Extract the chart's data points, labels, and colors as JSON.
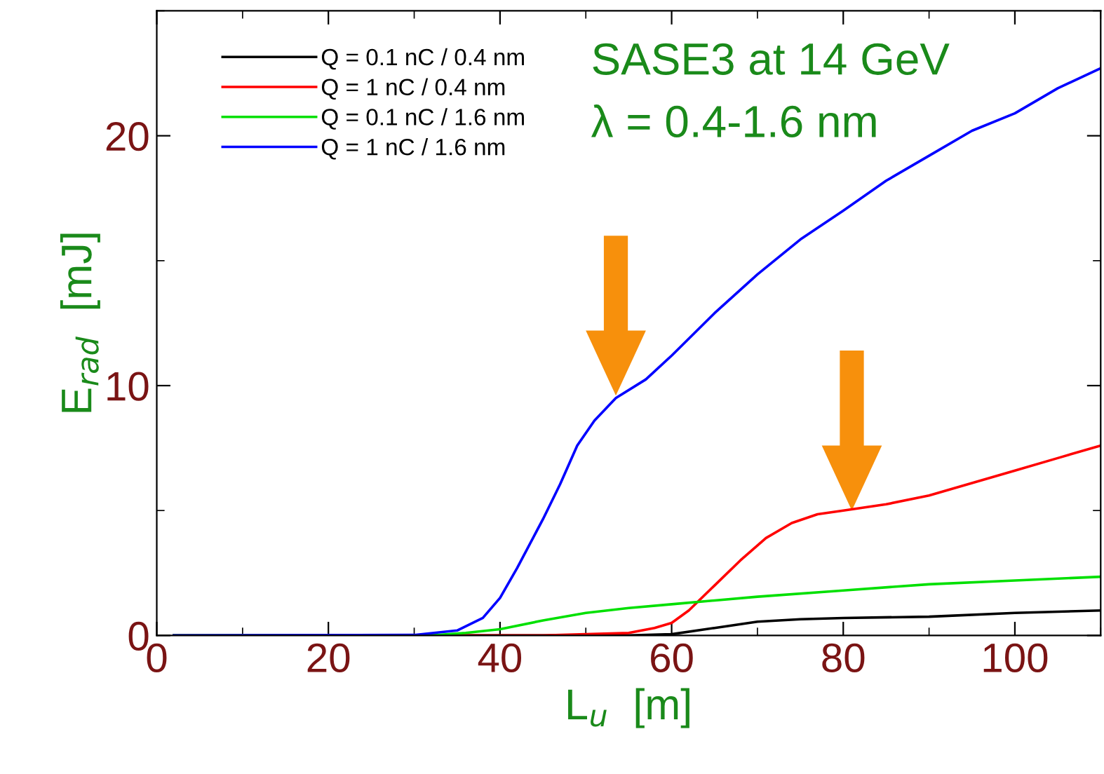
{
  "chart_data": {
    "type": "line",
    "xlabel": "L$_{u}$  [m]",
    "ylabel": "E$_{rad}$  [mJ]",
    "annotations": [
      "SASE3 at 14 GeV",
      "λ = 0.4-1.6 nm"
    ],
    "xlim": [
      0,
      110
    ],
    "xticks": [
      0,
      20,
      40,
      60,
      80,
      100
    ],
    "ylim": [
      0,
      25
    ],
    "yticks": [
      0,
      10,
      20
    ],
    "grid": false,
    "legend": "top left",
    "line_style": "solid",
    "marker": "none",
    "series": [
      {
        "name": "Q = 0.1 nC / 0.4 nm",
        "color": "#000000",
        "x": [
          2,
          55,
          60,
          65,
          70,
          75,
          80,
          90,
          100,
          110
        ],
        "values": [
          0,
          0,
          0.05,
          0.3,
          0.55,
          0.65,
          0.7,
          0.75,
          0.9,
          1.0
        ]
      },
      {
        "name": "Q = 1 nC / 0.4 nm",
        "color": "#ff0000",
        "x": [
          2,
          45,
          50,
          55,
          58,
          60,
          62,
          65,
          68,
          71,
          74,
          77,
          80,
          85,
          90,
          95,
          100,
          105,
          110
        ],
        "values": [
          0,
          0,
          0.05,
          0.1,
          0.3,
          0.5,
          1.0,
          2.0,
          3.0,
          3.9,
          4.5,
          4.85,
          5.0,
          5.25,
          5.6,
          6.1,
          6.6,
          7.1,
          7.6
        ]
      },
      {
        "name": "Q = 0.1 nC / 1.6 nm",
        "color": "#00e000",
        "x": [
          2,
          32,
          36,
          40,
          45,
          50,
          55,
          60,
          65,
          70,
          80,
          90,
          100,
          110
        ],
        "values": [
          0,
          0,
          0.1,
          0.25,
          0.6,
          0.9,
          1.1,
          1.25,
          1.4,
          1.55,
          1.8,
          2.05,
          2.2,
          2.35
        ]
      },
      {
        "name": "Q = 1 nC / 1.6 nm",
        "color": "#0000ff",
        "x": [
          2,
          30,
          35,
          38,
          40,
          42,
          45,
          47,
          49,
          51,
          53.5,
          57,
          60,
          65,
          70,
          75,
          80,
          85,
          90,
          95,
          100,
          105,
          110
        ],
        "values": [
          0,
          0.02,
          0.2,
          0.7,
          1.5,
          2.7,
          4.65,
          6.05,
          7.6,
          8.6,
          9.5,
          10.25,
          11.2,
          12.9,
          14.45,
          15.85,
          17.0,
          18.2,
          19.2,
          20.2,
          20.9,
          21.9,
          22.7
        ]
      }
    ]
  }
}
